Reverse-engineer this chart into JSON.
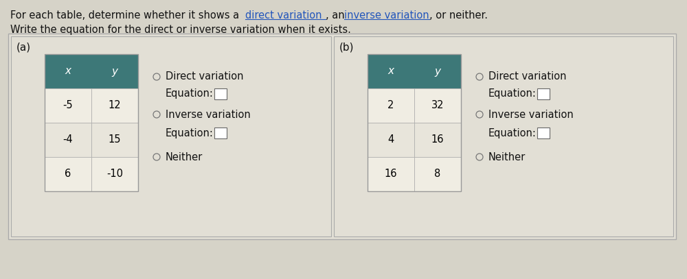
{
  "title_line1_pre": "For each table, determine whether it shows a ",
  "title_link1": "direct variation",
  "title_line1_mid": ", an ",
  "title_link2": "inverse variation",
  "title_line1_end": ", or neither.",
  "title_line2": "Write the equation for the direct or inverse variation when it exists.",
  "section_a_label": "(a)",
  "section_b_label": "(b)",
  "table_header_color": "#3d7878",
  "table_border_color": "#999999",
  "row_colors": [
    "#f0ede3",
    "#e8e5db"
  ],
  "table_a_rows": [
    [
      "-5",
      "12"
    ],
    [
      "-4",
      "15"
    ],
    [
      "6",
      "-10"
    ]
  ],
  "table_b_rows": [
    [
      "2",
      "32"
    ],
    [
      "4",
      "16"
    ],
    [
      "16",
      "8"
    ]
  ],
  "options": [
    "Direct variation",
    "Inverse variation",
    "Neither"
  ],
  "equation_label": "Equation:",
  "background_color": "#d6d3c8",
  "inner_bg": "#e2dfd5",
  "link_color": "#2255bb",
  "text_color": "#111111",
  "radio_color": "#777777",
  "eq_box_color": "#666666",
  "font_size": 10.5,
  "font_size_small": 10.0
}
